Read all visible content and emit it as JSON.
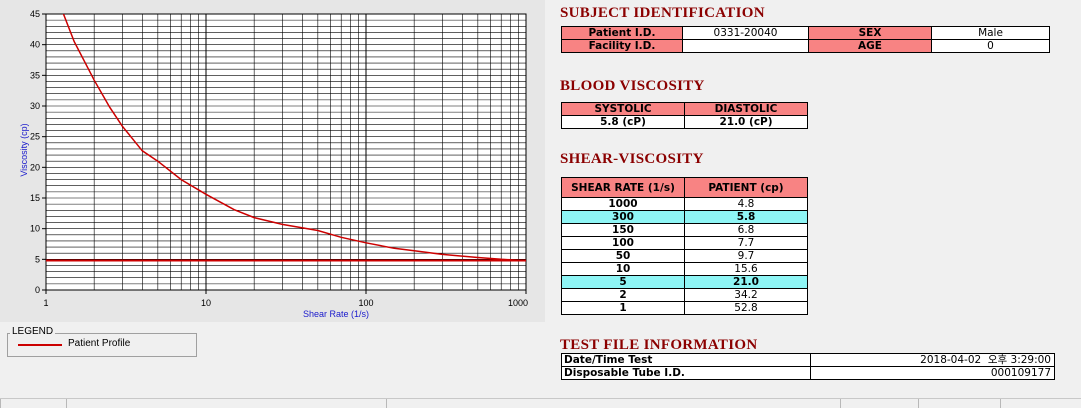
{
  "chart_data": {
    "type": "line",
    "x_scale": "log",
    "xlim": [
      1,
      1000
    ],
    "ylim": [
      0,
      45
    ],
    "xlabel": "Shear Rate (1/s)",
    "ylabel": "Viscosity (cp)",
    "x_ticks": [
      "1",
      "10",
      "100",
      "1000"
    ],
    "y_ticks": [
      "0",
      "5",
      "10",
      "15",
      "20",
      "25",
      "30",
      "35",
      "40",
      "45"
    ],
    "grid": true,
    "series": [
      {
        "name": "Patient Profile",
        "color": "#cc0000",
        "x": [
          1,
          1.2,
          1.5,
          2,
          2.5,
          3,
          4,
          5,
          7,
          10,
          15,
          20,
          30,
          50,
          70,
          100,
          150,
          200,
          300,
          500,
          700,
          1000
        ],
        "y": [
          52.8,
          47.0,
          40.5,
          34.2,
          29.8,
          26.7,
          22.7,
          21.0,
          18.0,
          15.6,
          13.1,
          11.8,
          10.7,
          9.7,
          8.6,
          7.7,
          6.8,
          6.4,
          5.8,
          5.3,
          5.0,
          4.8
        ]
      }
    ],
    "reference_line": {
      "y": 4.8,
      "color": "#cc0000"
    },
    "legend": {
      "title": "LEGEND",
      "placement": "bottom-left",
      "entries": [
        "Patient Profile"
      ]
    }
  },
  "subject": {
    "title": "SUBJECT IDENTIFICATION",
    "patient_id_label": "Patient I.D.",
    "patient_id_value": "0331-20040",
    "facility_id_label": "Facility I.D.",
    "facility_id_value": "",
    "sex_label": "SEX",
    "sex_value": "Male",
    "age_label": "AGE",
    "age_value": "0"
  },
  "blood": {
    "title": "BLOOD VISCOSITY",
    "systolic_label": "SYSTOLIC",
    "diastolic_label": "DIASTOLIC",
    "systolic_value": "5.8 (cP)",
    "diastolic_value": "21.0 (cP)"
  },
  "shear": {
    "title": "SHEAR-VISCOSITY",
    "col_rate": "SHEAR RATE (1/s)",
    "col_patient": "PATIENT (cp)",
    "rows": [
      {
        "rate": "1000",
        "value": "4.8"
      },
      {
        "rate": "300",
        "value": "5.8"
      },
      {
        "rate": "150",
        "value": "6.8"
      },
      {
        "rate": "100",
        "value": "7.7"
      },
      {
        "rate": "50",
        "value": "9.7"
      },
      {
        "rate": "10",
        "value": "15.6"
      },
      {
        "rate": "5",
        "value": "21.0"
      },
      {
        "rate": "2",
        "value": "34.2"
      },
      {
        "rate": "1",
        "value": "52.8"
      }
    ],
    "highlight_color": "#8ef5f5"
  },
  "test_file": {
    "title": "TEST FILE INFORMATION",
    "datetime_label": "Date/Time Test",
    "datetime_value": "2018-04-02  오후 3:29:00",
    "tube_label": "Disposable Tube I.D.",
    "tube_value": "000109177"
  }
}
